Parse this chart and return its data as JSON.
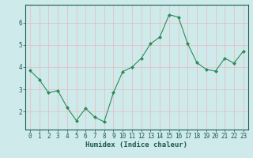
{
  "x": [
    0,
    1,
    2,
    3,
    4,
    5,
    6,
    7,
    8,
    9,
    10,
    11,
    12,
    13,
    14,
    15,
    16,
    17,
    18,
    19,
    20,
    21,
    22,
    23
  ],
  "y": [
    3.85,
    3.45,
    2.85,
    2.95,
    2.2,
    1.6,
    2.15,
    1.75,
    1.55,
    2.85,
    3.8,
    4.0,
    4.4,
    5.05,
    5.35,
    6.35,
    6.25,
    5.05,
    4.2,
    3.9,
    3.82,
    4.4,
    4.18,
    4.72
  ],
  "line_color": "#2e8b57",
  "marker": "D",
  "marker_size": 2.0,
  "bg_color": "#ceeaea",
  "grid_color": "#e8b8c0",
  "axis_color": "#1e5c50",
  "xlabel": "Humidex (Indice chaleur)",
  "xlim": [
    -0.5,
    23.5
  ],
  "ylim": [
    1.2,
    6.8
  ],
  "yticks": [
    2,
    3,
    4,
    5,
    6
  ],
  "xticks": [
    0,
    1,
    2,
    3,
    4,
    5,
    6,
    7,
    8,
    9,
    10,
    11,
    12,
    13,
    14,
    15,
    16,
    17,
    18,
    19,
    20,
    21,
    22,
    23
  ],
  "label_fontsize": 6.5,
  "tick_fontsize": 5.5
}
